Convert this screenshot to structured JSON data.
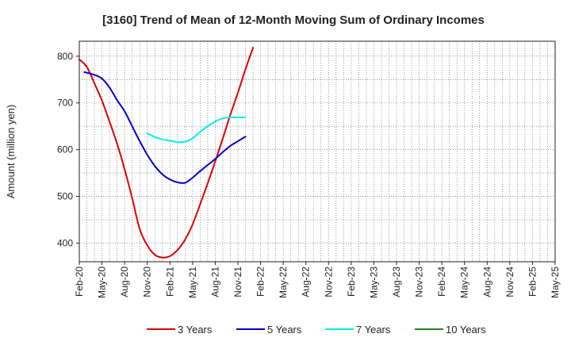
{
  "chart_data": {
    "type": "line",
    "title": "[3160]  Trend of Mean of 12-Month Moving Sum of Ordinary Incomes",
    "xlabel": "",
    "ylabel": "Amount (million yen)",
    "ylim": [
      360,
      832
    ],
    "yticks": [
      400,
      500,
      600,
      700,
      800
    ],
    "grid": true,
    "legend_position": "bottom",
    "x_tick_labels": [
      "Feb-20",
      "May-20",
      "Aug-20",
      "Nov-20",
      "Feb-21",
      "May-21",
      "Aug-21",
      "Nov-21",
      "Feb-22",
      "May-22",
      "Aug-22",
      "Nov-22",
      "Feb-23",
      "May-23",
      "Aug-23",
      "Nov-23",
      "Feb-24",
      "May-24",
      "Aug-24",
      "Nov-24",
      "Feb-25",
      "May-25"
    ],
    "series": [
      {
        "name": "3 Years",
        "color": "#dd0000",
        "points": [
          [
            0,
            793
          ],
          [
            1,
            777
          ],
          [
            2,
            742
          ],
          [
            3,
            705
          ],
          [
            4,
            660
          ],
          [
            5,
            613
          ],
          [
            6,
            558
          ],
          [
            7,
            496
          ],
          [
            8,
            430
          ],
          [
            9,
            395
          ],
          [
            10,
            375
          ],
          [
            11,
            369
          ],
          [
            12,
            372
          ],
          [
            13,
            385
          ],
          [
            14,
            407
          ],
          [
            15,
            440
          ],
          [
            16,
            483
          ],
          [
            17,
            528
          ],
          [
            18,
            575
          ],
          [
            19,
            624
          ],
          [
            20,
            675
          ],
          [
            21,
            722
          ],
          [
            22,
            772
          ],
          [
            23,
            818
          ]
        ]
      },
      {
        "name": "5 Years",
        "color": "#0000cc",
        "points": [
          [
            0.666,
            766
          ],
          [
            2,
            760
          ],
          [
            3,
            752
          ],
          [
            4,
            733
          ],
          [
            5,
            706
          ],
          [
            6,
            682
          ],
          [
            7,
            650
          ],
          [
            8,
            618
          ],
          [
            9,
            589
          ],
          [
            10,
            565
          ],
          [
            11,
            547
          ],
          [
            12,
            536
          ],
          [
            13,
            530
          ],
          [
            14,
            529
          ],
          [
            15,
            540
          ],
          [
            16,
            554
          ],
          [
            17,
            567
          ],
          [
            18,
            580
          ],
          [
            19,
            595
          ],
          [
            20,
            608
          ],
          [
            21,
            618
          ],
          [
            22,
            628
          ]
        ]
      },
      {
        "name": "7 Years",
        "color": "#00eeee",
        "points": [
          [
            9,
            635
          ],
          [
            10,
            627
          ],
          [
            11,
            622
          ],
          [
            12,
            619
          ],
          [
            13,
            616
          ],
          [
            14,
            617
          ],
          [
            15,
            624
          ],
          [
            16,
            638
          ],
          [
            17,
            650
          ],
          [
            18,
            660
          ],
          [
            19,
            667
          ],
          [
            20,
            669
          ],
          [
            21,
            669
          ],
          [
            22,
            669
          ]
        ]
      },
      {
        "name": "10 Years",
        "color": "#228822",
        "points": []
      }
    ]
  }
}
